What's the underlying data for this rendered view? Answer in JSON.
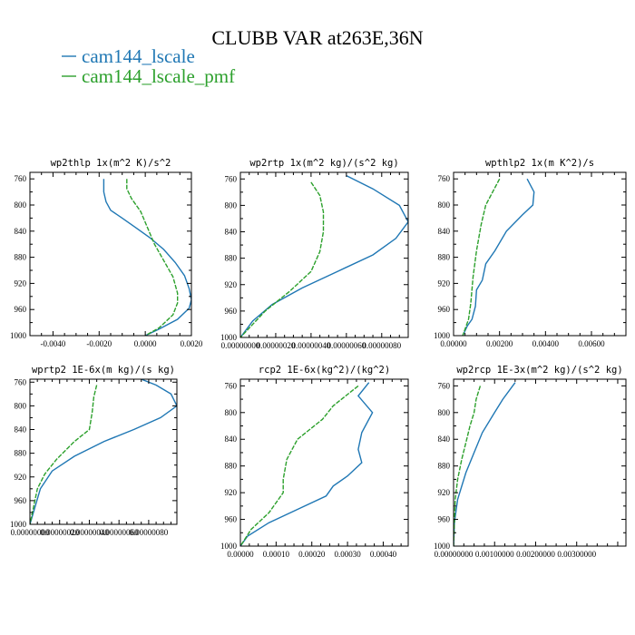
{
  "figure": {
    "title": "CLUBB VAR at263E,36N",
    "legend": [
      {
        "label": "cam144_lscale",
        "color": "#1f77b4"
      },
      {
        "label": "cam144_lscale_pmf",
        "color": "#2ca02c"
      }
    ]
  },
  "chart_data": [
    {
      "type": "line",
      "title": "wp2thlp  1x(m^2 K)/s^2",
      "xlim": [
        -0.005,
        0.002
      ],
      "ylim": [
        1000,
        750
      ],
      "xticks": [
        -0.004,
        -0.002,
        0.0,
        0.002
      ],
      "xtick_labels": [
        "-0.0040",
        "-0.0020",
        "0.0000",
        "0.0020"
      ],
      "yticks": [
        760,
        800,
        840,
        880,
        920,
        960,
        1000
      ],
      "series": [
        {
          "name": "cam144_lscale",
          "points": [
            [
              -0.0018,
              760
            ],
            [
              -0.0018,
              780
            ],
            [
              -0.0017,
              795
            ],
            [
              -0.0015,
              808
            ],
            [
              -0.001,
              820
            ],
            [
              -0.0004,
              835
            ],
            [
              0.0002,
              850
            ],
            [
              0.0008,
              868
            ],
            [
              0.0013,
              888
            ],
            [
              0.0017,
              908
            ],
            [
              0.0019,
              928
            ],
            [
              0.002,
              945
            ],
            [
              0.0019,
              958
            ],
            [
              0.0014,
              975
            ],
            [
              0.0006,
              990
            ],
            [
              0.0,
              1000
            ]
          ]
        },
        {
          "name": "cam144_lscale_pmf",
          "points": [
            [
              -0.0008,
              760
            ],
            [
              -0.0008,
              775
            ],
            [
              -0.0006,
              790
            ],
            [
              -0.0002,
              810
            ],
            [
              0.0001,
              835
            ],
            [
              0.0004,
              860
            ],
            [
              0.0008,
              885
            ],
            [
              0.0012,
              910
            ],
            [
              0.0014,
              935
            ],
            [
              0.0014,
              950
            ],
            [
              0.0012,
              968
            ],
            [
              0.0006,
              988
            ],
            [
              0.0,
              1000
            ]
          ]
        }
      ]
    },
    {
      "type": "line",
      "title": "wp2rtp  1x(m^2 kg)/(s^2 kg)",
      "xlim": [
        0.0,
        9.5e-07
      ],
      "ylim": [
        1000,
        750
      ],
      "xticks": [
        0.0,
        2e-07,
        4e-07,
        6e-07,
        8e-07
      ],
      "xtick_labels": [
        "0.00000000",
        "0.00000020",
        "0.00000040",
        "0.00000060",
        "0.00000080"
      ],
      "yticks": [
        760,
        800,
        840,
        880,
        920,
        960,
        1000
      ],
      "series": [
        {
          "name": "cam144_lscale",
          "points": [
            [
              6e-07,
              755
            ],
            [
              7.5e-07,
              775
            ],
            [
              9e-07,
              800
            ],
            [
              9.5e-07,
              825
            ],
            [
              8.8e-07,
              850
            ],
            [
              7.5e-07,
              875
            ],
            [
              5.5e-07,
              900
            ],
            [
              3.5e-07,
              925
            ],
            [
              1.8e-07,
              950
            ],
            [
              7e-08,
              975
            ],
            [
              0.0,
              1000
            ]
          ]
        },
        {
          "name": "cam144_lscale_pmf",
          "points": [
            [
              4e-07,
              765
            ],
            [
              4.5e-07,
              785
            ],
            [
              4.7e-07,
              810
            ],
            [
              4.7e-07,
              840
            ],
            [
              4.5e-07,
              870
            ],
            [
              4e-07,
              900
            ],
            [
              2.8e-07,
              930
            ],
            [
              1.4e-07,
              960
            ],
            [
              0.0,
              1000
            ]
          ]
        }
      ]
    },
    {
      "type": "line",
      "title": "wpthlp2  1x(m K^2)/s",
      "xlim": [
        0.0,
        0.0075
      ],
      "ylim": [
        1000,
        750
      ],
      "xticks": [
        0.0,
        0.002,
        0.004,
        0.006
      ],
      "xtick_labels": [
        "0.00000",
        "0.00200",
        "0.00400",
        "0.00600"
      ],
      "yticks": [
        760,
        800,
        840,
        880,
        920,
        960,
        1000
      ],
      "series": [
        {
          "name": "cam144_lscale",
          "points": [
            [
              0.0032,
              760
            ],
            [
              0.0035,
              780
            ],
            [
              0.00345,
              800
            ],
            [
              0.003,
              815
            ],
            [
              0.0023,
              840
            ],
            [
              0.0018,
              870
            ],
            [
              0.0014,
              890
            ],
            [
              0.00125,
              915
            ],
            [
              0.001,
              930
            ],
            [
              0.00095,
              955
            ],
            [
              0.0008,
              975
            ],
            [
              0.0006,
              985
            ],
            [
              0.0004,
              1000
            ]
          ]
        },
        {
          "name": "cam144_lscale_pmf",
          "points": [
            [
              0.002,
              760
            ],
            [
              0.0017,
              780
            ],
            [
              0.0014,
              800
            ],
            [
              0.0012,
              830
            ],
            [
              0.001,
              870
            ],
            [
              0.00085,
              910
            ],
            [
              0.00075,
              950
            ],
            [
              0.00065,
              975
            ],
            [
              0.0004,
              1000
            ]
          ]
        }
      ]
    },
    {
      "type": "line",
      "title": "wprtp2  1E-6x(m kg)/(s kg)",
      "xlim": [
        0.0,
        9.9e-07
      ],
      "ylim": [
        1000,
        755
      ],
      "xticks": [
        0.0,
        2e-07,
        4e-07,
        6e-07,
        8e-07
      ],
      "xtick_labels": [
        "0.00000000",
        "0.00000020",
        "0.00000040",
        "0.00000060",
        "0.00000080"
      ],
      "yticks": [
        760,
        800,
        840,
        880,
        920,
        960,
        1000
      ],
      "series": [
        {
          "name": "cam144_lscale",
          "points": [
            [
              7.5e-07,
              755
            ],
            [
              8.5e-07,
              765
            ],
            [
              9.5e-07,
              780
            ],
            [
              9.9e-07,
              800
            ],
            [
              8.8e-07,
              820
            ],
            [
              7e-07,
              840
            ],
            [
              5e-07,
              860
            ],
            [
              3e-07,
              885
            ],
            [
              1.5e-07,
              910
            ],
            [
              7e-08,
              940
            ],
            [
              0.0,
              1000
            ]
          ]
        },
        {
          "name": "cam144_lscale_pmf",
          "points": [
            [
              4.5e-07,
              765
            ],
            [
              4.3e-07,
              785
            ],
            [
              4.2e-07,
              810
            ],
            [
              4e-07,
              840
            ],
            [
              3e-07,
              860
            ],
            [
              1.8e-07,
              890
            ],
            [
              1e-07,
              915
            ],
            [
              5e-08,
              940
            ],
            [
              0.0,
              1000
            ]
          ]
        }
      ]
    },
    {
      "type": "line",
      "title": "rcp2  1E-6x(kg^2)/(kg^2)",
      "xlim": [
        0.0,
        0.00047
      ],
      "ylim": [
        1000,
        750
      ],
      "xticks": [
        0.0,
        0.0001,
        0.0002,
        0.0003,
        0.0004
      ],
      "xtick_labels": [
        "0.00000",
        "0.00010",
        "0.00020",
        "0.00030",
        "0.00040"
      ],
      "yticks": [
        760,
        800,
        840,
        880,
        920,
        960,
        1000
      ],
      "series": [
        {
          "name": "cam144_lscale",
          "points": [
            [
              0.00036,
              755
            ],
            [
              0.00033,
              775
            ],
            [
              0.00037,
              800
            ],
            [
              0.00034,
              830
            ],
            [
              0.00033,
              855
            ],
            [
              0.00034,
              875
            ],
            [
              0.0003,
              895
            ],
            [
              0.00026,
              910
            ],
            [
              0.00024,
              925
            ],
            [
              0.00016,
              945
            ],
            [
              8e-05,
              965
            ],
            [
              2e-05,
              985
            ],
            [
              0.0,
              1000
            ]
          ]
        },
        {
          "name": "cam144_lscale_pmf",
          "points": [
            [
              0.00033,
              760
            ],
            [
              0.00026,
              790
            ],
            [
              0.00023,
              810
            ],
            [
              0.00016,
              840
            ],
            [
              0.00013,
              870
            ],
            [
              0.00012,
              900
            ],
            [
              0.00012,
              920
            ],
            [
              8e-05,
              950
            ],
            [
              3e-05,
              975
            ],
            [
              0.0,
              1000
            ]
          ]
        }
      ]
    },
    {
      "type": "line",
      "title": "wp2rcp  1E-3x(m^2 kg)/(s^2 kg)",
      "xlim": [
        0.0,
        0.0042
      ],
      "ylim": [
        1000,
        750
      ],
      "xticks": [
        0.0,
        0.001,
        0.002,
        0.003
      ],
      "xtick_labels": [
        "0.00000000",
        "0.00100000",
        "0.00200000",
        "0.00300000"
      ],
      "yticks": [
        760,
        800,
        840,
        880,
        920,
        960,
        1000
      ],
      "series": [
        {
          "name": "cam144_lscale",
          "points": [
            [
              0.0015,
              755
            ],
            [
              0.0012,
              780
            ],
            [
              0.001,
              800
            ],
            [
              0.0007,
              830
            ],
            [
              0.0005,
              860
            ],
            [
              0.0003,
              890
            ],
            [
              0.0001,
              930
            ],
            [
              2e-05,
              965
            ],
            [
              0.0,
              1000
            ]
          ]
        },
        {
          "name": "cam144_lscale_pmf",
          "points": [
            [
              0.00065,
              760
            ],
            [
              0.00055,
              780
            ],
            [
              0.0005,
              800
            ],
            [
              0.0004,
              820
            ],
            [
              0.0003,
              845
            ],
            [
              0.0002,
              870
            ],
            [
              0.0001,
              900
            ],
            [
              4e-05,
              930
            ],
            [
              0.0,
              1000
            ]
          ]
        }
      ]
    }
  ]
}
